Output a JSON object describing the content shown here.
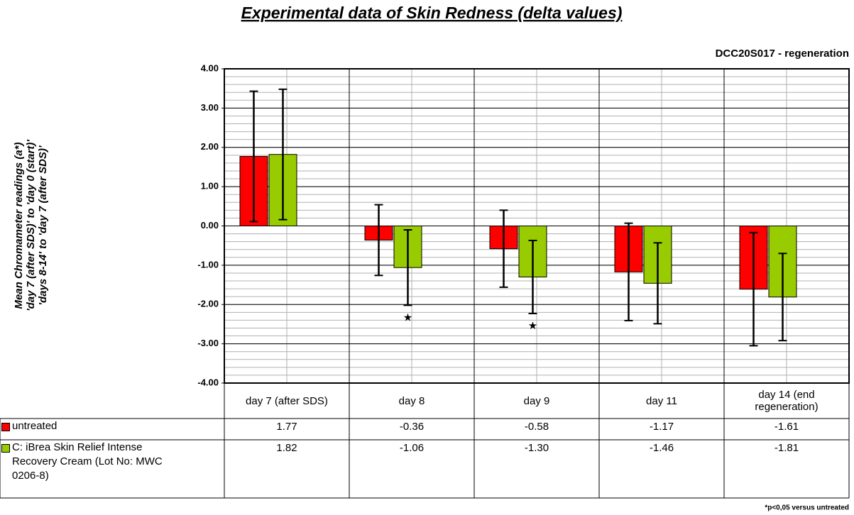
{
  "chart_data": {
    "type": "bar",
    "title": "Experimental data of Skin Redness (delta values)",
    "subtitle": "DCC20S017 - regeneration",
    "y_label": [
      "Mean Chromameter readings (a*)",
      "'day 7 (after SDS)' to 'day 0 (start)'",
      "'days 8-14' to 'day 7 (after SDS)'"
    ],
    "categories": [
      "day 7 (after SDS)",
      "day 8",
      "day 9",
      "day 11",
      "day 14 (end regeneration)"
    ],
    "series": [
      {
        "name": "untreated",
        "color": "#ff0000",
        "values": [
          1.77,
          -0.36,
          -0.58,
          -1.17,
          -1.61
        ],
        "value_labels": [
          "1.77",
          "-0.36",
          "-0.58",
          "-1.17",
          "-1.61"
        ],
        "errors": [
          1.66,
          0.9,
          0.98,
          1.24,
          1.44
        ],
        "markers": [
          null,
          null,
          null,
          null,
          null
        ]
      },
      {
        "name": "C: iBrea Skin Relief Intense Recovery Cream (Lot No: MWC 0206-8)",
        "color": "#99cc00",
        "values": [
          1.82,
          -1.06,
          -1.3,
          -1.46,
          -1.81
        ],
        "value_labels": [
          "1.82",
          "-1.06",
          "-1.30",
          "-1.46",
          "-1.81"
        ],
        "errors": [
          1.66,
          0.96,
          0.93,
          1.03,
          1.11
        ],
        "markers": [
          null,
          "★",
          "★",
          null,
          null
        ]
      }
    ],
    "ylim": [
      -4,
      4
    ],
    "yticks": [
      {
        "value": -4,
        "label": "-4.00"
      },
      {
        "value": -3,
        "label": "-3.00"
      },
      {
        "value": -2,
        "label": "-2.00"
      },
      {
        "value": -1,
        "label": "-1.00"
      },
      {
        "value": 0,
        "label": "0.00"
      },
      {
        "value": 1,
        "label": "1.00"
      },
      {
        "value": 2,
        "label": "2.00"
      },
      {
        "value": 3,
        "label": "3.00"
      },
      {
        "value": 4,
        "label": "4.00"
      }
    ],
    "minor_grid": 0.2,
    "grid": true,
    "footnote": "*p<0,05 versus untreated"
  }
}
